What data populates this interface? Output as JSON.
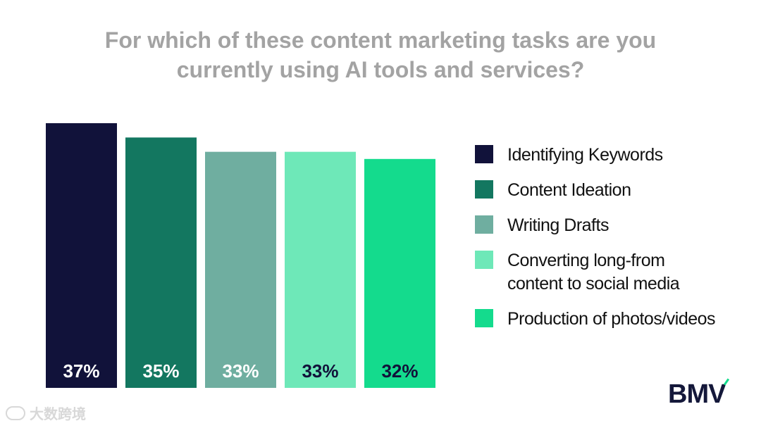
{
  "title": {
    "line1": "For which of these content marketing tasks are you",
    "line2": "currently using AI tools and services?"
  },
  "chart_data": {
    "type": "bar",
    "categories": [
      "Identifying Keywords",
      "Content Ideation",
      "Writing Drafts",
      "Converting long-from content to social media",
      "Production of photos/videos"
    ],
    "values": [
      37,
      35,
      33,
      33,
      32
    ],
    "value_labels": [
      "37%",
      "35%",
      "33%",
      "33%",
      "32%"
    ],
    "value_label_colors": [
      "#ffffff",
      "#ffffff",
      "#ffffff",
      "#11123a",
      "#11123a"
    ],
    "colors": [
      "#11123a",
      "#137760",
      "#6faea0",
      "#6ee8b8",
      "#14db8d"
    ],
    "ylim": [
      0,
      37
    ],
    "grid": false,
    "legend_position": "right"
  },
  "legend": {
    "items": [
      {
        "label": "Identifying Keywords",
        "color": "#11123a"
      },
      {
        "label": "Content Ideation",
        "color": "#137760"
      },
      {
        "label": "Writing Drafts",
        "color": "#6faea0"
      },
      {
        "label": "Converting long-from content to social media",
        "color": "#6ee8b8"
      },
      {
        "label": "Production of photos/videos",
        "color": "#14db8d"
      }
    ]
  },
  "logo": {
    "text": "BMV",
    "accent_color": "#14db8d"
  },
  "watermark": {
    "text": "大数跨境",
    "icon": "bird-logo-icon"
  }
}
